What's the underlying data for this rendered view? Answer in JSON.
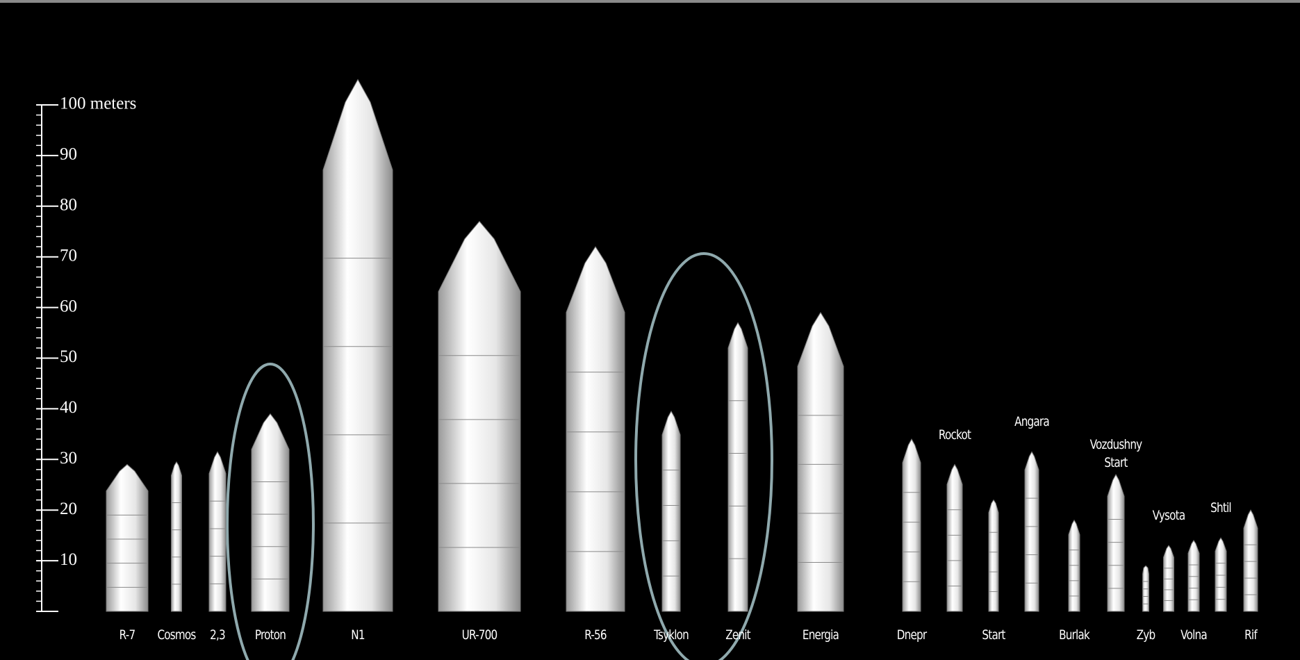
{
  "scale": {
    "ticks": [
      {
        "value": 100,
        "label": "100 meters"
      },
      90,
      80,
      70,
      60,
      50,
      40,
      30,
      20,
      10
    ]
  },
  "rockets": [
    {
      "label": "R-7",
      "height": 29
    },
    {
      "label": "Cosmos",
      "height": 29.5
    },
    {
      "label": "2,3",
      "height": 31.5
    },
    {
      "label": "Proton",
      "height": 39
    },
    {
      "label": "N1",
      "height": 105
    },
    {
      "label": "UR-700",
      "height": 77
    },
    {
      "label": "R-56",
      "height": 72
    },
    {
      "label": "Tsyklon",
      "height": 39.5
    },
    {
      "label": "Zenit",
      "height": 57
    },
    {
      "label": "Energia",
      "height": 59
    },
    {
      "label": "Dnepr",
      "height": 34
    },
    {
      "label": "Rockot",
      "height": 29
    },
    {
      "label": "Start",
      "height": 22
    },
    {
      "label": "Angara",
      "height": 31.5
    },
    {
      "label": "Burlak",
      "height": 18
    },
    {
      "label": "Vozdushny Start",
      "height": 27
    },
    {
      "label": "Zyb",
      "height": 9
    },
    {
      "label": "Vysota",
      "height": 13
    },
    {
      "label": "Volna",
      "height": 14
    },
    {
      "label": "Shtil",
      "height": 14.5
    },
    {
      "label": "Rif",
      "height": 20
    }
  ]
}
